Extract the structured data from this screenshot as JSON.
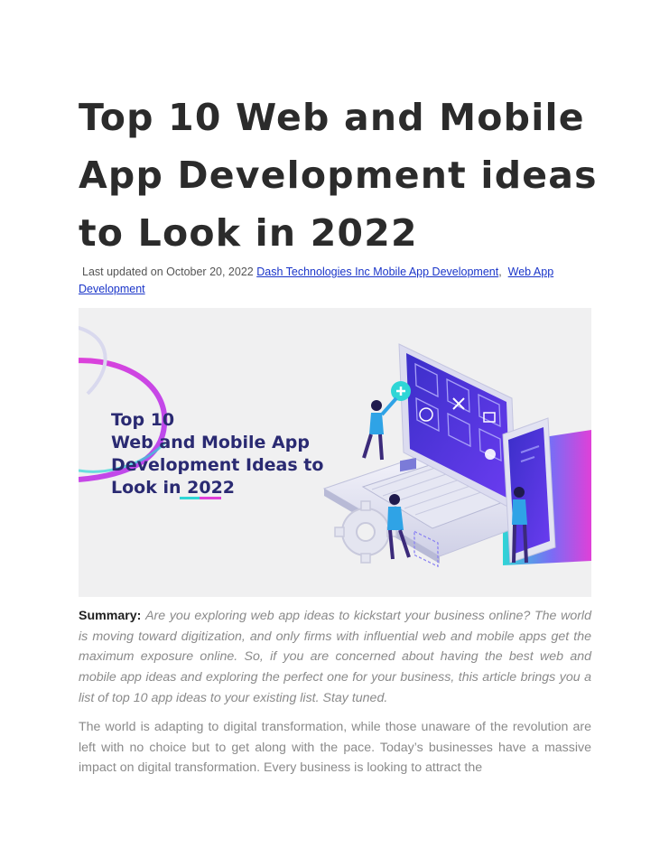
{
  "article": {
    "title_lines": [
      "Top 10 Web and Mobile",
      "App Development ideas",
      "to Look in 2022"
    ],
    "meta": {
      "prefix": "Last updated on October 20, 2022",
      "link_1": "Dash Technologies Inc Mobile App Development",
      "separator": ",",
      "link_2": "Web App Development"
    },
    "hero": {
      "lines": [
        "Top 10",
        "Web and Mobile App",
        "Development Ideas to",
        "Look in "
      ],
      "year": "2022",
      "colors": {
        "heading": "#2a2a72",
        "accent_cyan": "#2fd6d6",
        "accent_pink": "#e040d8",
        "device": "#4b2fc9"
      }
    },
    "summary": {
      "label": "Summary:",
      "text": "Are you exploring web app ideas to kickstart your business online? The world  is moving toward digitization, and only firms with influential web and mobile apps get  the maximum exposure online. So, if you are concerned about having the best web and  mobile app ideas and exploring the perfect one for your business, this article brings you  a list of top 10 app ideas to your existing list. Stay tuned."
    },
    "body": "The world is adapting to digital transformation, while those unaware of the revolution are left with no choice but to get along with the pace. Today’s businesses have a massive impact on digital transformation. Every business is looking to attract the"
  }
}
